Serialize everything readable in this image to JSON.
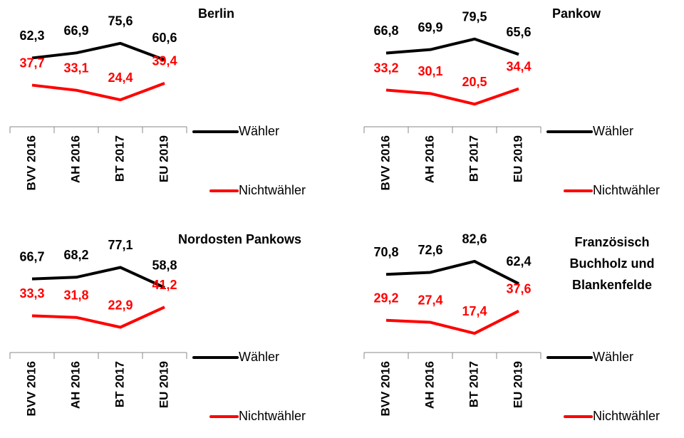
{
  "chart_data": [
    {
      "type": "line",
      "title_lines": [
        "Berlin"
      ],
      "categories": [
        "BVV 2016",
        "AH 2016",
        "BT 2017",
        "EU 2019"
      ],
      "series": [
        {
          "name": "Wähler",
          "color": "#000000",
          "values": [
            62.3,
            66.9,
            75.6,
            60.6
          ],
          "value_labels": [
            "62,3",
            "66,9",
            "75,6",
            "60,6"
          ]
        },
        {
          "name": "Nichtwähler",
          "color": "#ff0000",
          "values": [
            37.7,
            33.1,
            24.4,
            39.4
          ],
          "value_labels": [
            "37,7",
            "33,1",
            "24,4",
            "39,4"
          ]
        }
      ]
    },
    {
      "type": "line",
      "title_lines": [
        "Pankow"
      ],
      "categories": [
        "BVV 2016",
        "AH 2016",
        "BT 2017",
        "EU 2019"
      ],
      "series": [
        {
          "name": "Wähler",
          "color": "#000000",
          "values": [
            66.8,
            69.9,
            79.5,
            65.6
          ],
          "value_labels": [
            "66,8",
            "69,9",
            "79,5",
            "65,6"
          ]
        },
        {
          "name": "Nichtwähler",
          "color": "#ff0000",
          "values": [
            33.2,
            30.1,
            20.5,
            34.4
          ],
          "value_labels": [
            "33,2",
            "30,1",
            "20,5",
            "34,4"
          ]
        }
      ]
    },
    {
      "type": "line",
      "title_lines": [
        "Nordosten Pankows"
      ],
      "categories": [
        "BVV 2016",
        "AH 2016",
        "BT 2017",
        "EU 2019"
      ],
      "series": [
        {
          "name": "Wähler",
          "color": "#000000",
          "values": [
            66.7,
            68.2,
            77.1,
            58.8
          ],
          "value_labels": [
            "66,7",
            "68,2",
            "77,1",
            "58,8"
          ]
        },
        {
          "name": "Nichtwähler",
          "color": "#ff0000",
          "values": [
            33.3,
            31.8,
            22.9,
            41.2
          ],
          "value_labels": [
            "33,3",
            "31,8",
            "22,9",
            "41,2"
          ]
        }
      ]
    },
    {
      "type": "line",
      "title_lines": [
        "Französisch",
        "Buchholz und",
        "Blankenfelde"
      ],
      "categories": [
        "BVV 2016",
        "AH 2016",
        "BT 2017",
        "EU 2019"
      ],
      "series": [
        {
          "name": "Wähler",
          "color": "#000000",
          "values": [
            70.8,
            72.6,
            82.6,
            62.4
          ],
          "value_labels": [
            "70,8",
            "72,6",
            "82,6",
            "62,4"
          ]
        },
        {
          "name": "Nichtwähler",
          "color": "#ff0000",
          "values": [
            29.2,
            27.4,
            17.4,
            37.6
          ],
          "value_labels": [
            "29,2",
            "27,4",
            "17,4",
            "37,6"
          ]
        }
      ]
    }
  ]
}
